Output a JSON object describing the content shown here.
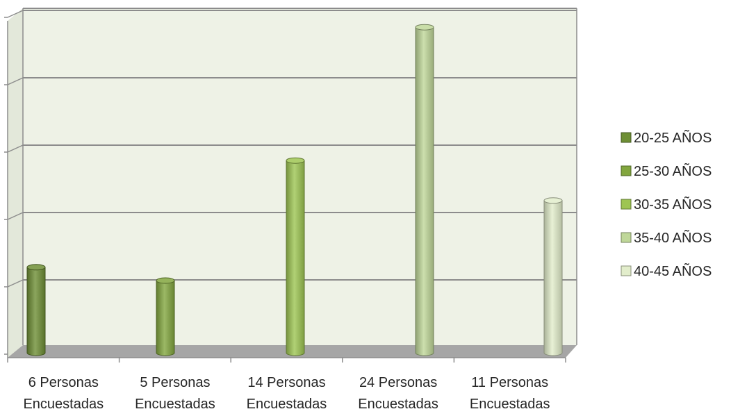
{
  "chart_data": {
    "type": "bar",
    "style": "3d-cylinder",
    "categories": [
      [
        "6 Personas",
        "Encuestadas"
      ],
      [
        "5 Personas",
        "Encuestadas"
      ],
      [
        "14 Personas",
        "Encuestadas"
      ],
      [
        "24 Personas",
        "Encuestadas"
      ],
      [
        "11 Personas",
        "Encuestadas"
      ]
    ],
    "series": [
      {
        "name": "20-25 AÑOS",
        "color": "#6e8f35",
        "values": [
          6,
          null,
          null,
          null,
          null
        ]
      },
      {
        "name": "25-30 AÑOS",
        "color": "#82a63e",
        "values": [
          null,
          5,
          null,
          null,
          null
        ]
      },
      {
        "name": "30-35 AÑOS",
        "color": "#9ec552",
        "values": [
          null,
          null,
          14,
          null,
          null
        ]
      },
      {
        "name": "35-40 AÑOS",
        "color": "#bfd799",
        "values": [
          null,
          null,
          null,
          24,
          null
        ]
      },
      {
        "name": "40-45 AÑOS",
        "color": "#e2edcb",
        "values": [
          null,
          null,
          null,
          null,
          11
        ]
      }
    ],
    "ylim": [
      0,
      25
    ],
    "grid": true,
    "legend_position": "right",
    "title": "",
    "xlabel": "",
    "ylabel": ""
  },
  "colors": {
    "wall": "#eef2e6",
    "grid": "#8c8c8c",
    "floor": "#a6a6a6",
    "axis": "#8c8c8c"
  }
}
